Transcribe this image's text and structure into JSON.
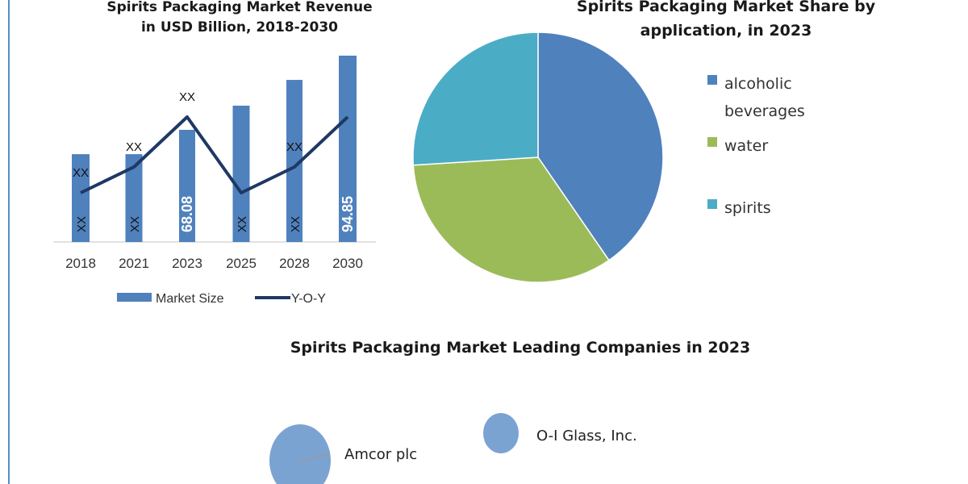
{
  "chart_data": [
    {
      "type": "bar",
      "title": [
        "Spirits Packaging Market Revenue",
        "in USD Billion, 2018-2030"
      ],
      "categories": [
        "2018",
        "2021",
        "2023",
        "2025",
        "2028",
        "2030"
      ],
      "series": [
        {
          "name": "Market Size",
          "type": "bar",
          "values": [
            59.3,
            59.3,
            68.08,
            76.8,
            86.1,
            94.85
          ],
          "labels": [
            "XX",
            "XX",
            "68.08",
            "XX",
            "XX",
            "94.85"
          ],
          "color": "#4f81bd"
        },
        {
          "name": "Y-O-Y",
          "type": "line",
          "values": [
            1,
            2,
            4,
            1,
            2,
            4
          ],
          "labels": [
            "XX",
            "XX",
            "XX",
            "",
            "XX",
            ""
          ],
          "color": "#1f3864"
        }
      ],
      "ylim": [
        27.6,
        100
      ],
      "grid": false,
      "legend": "bottom"
    },
    {
      "type": "pie",
      "title": [
        "Spirits Packaging Market Share by",
        "application, in 2023"
      ],
      "categories": [
        "alcoholic beverages",
        "water",
        "spirits"
      ],
      "legend_lines": [
        [
          "alcoholic",
          "beverages"
        ],
        [
          "water"
        ],
        [
          "spirits"
        ]
      ],
      "values": [
        40.4,
        33.6,
        26.0
      ],
      "colors": [
        "#4f81bd",
        "#9bbb59",
        "#4bacc6"
      ],
      "legend": "right"
    },
    {
      "type": "scatter",
      "title": "Spirits Packaging Market Leading Companies in 2023",
      "points": [
        {
          "label": "Amcor plc",
          "size": 3.0
        },
        {
          "label": "O-I Glass, Inc.",
          "size": 1.0
        }
      ],
      "color": "#7ba3d2"
    }
  ]
}
